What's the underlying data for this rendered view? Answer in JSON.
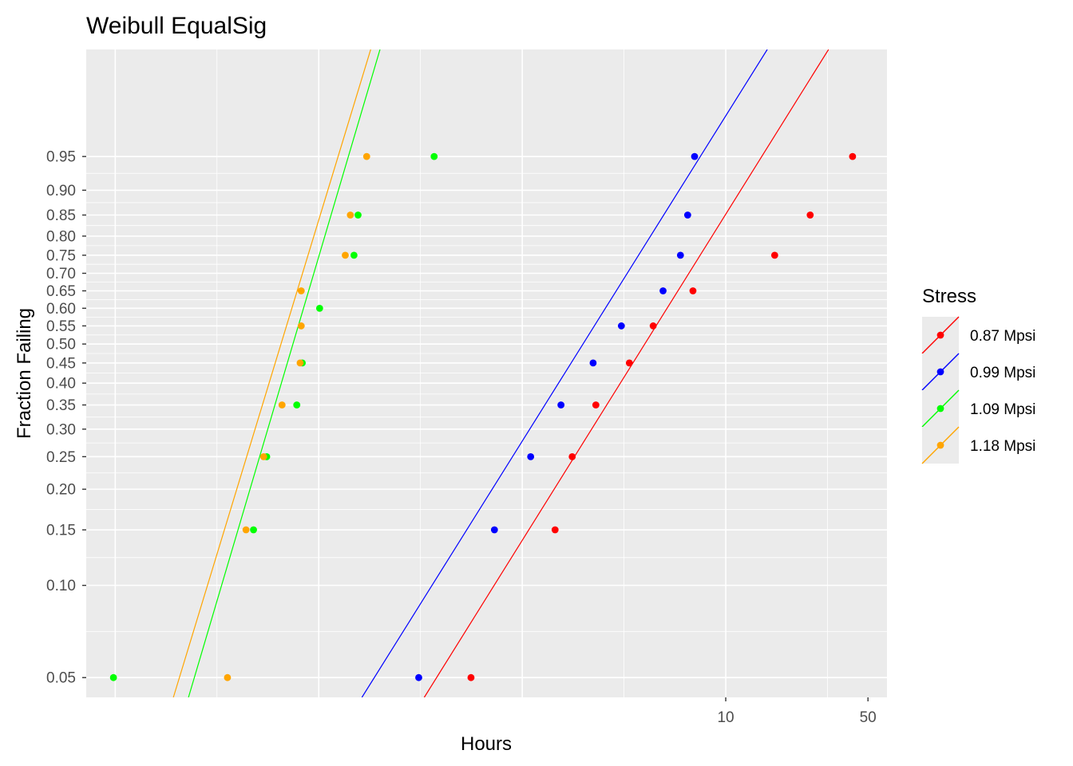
{
  "chart_data": {
    "type": "scatter",
    "title": "Weibull EqualSig",
    "xlabel": "Hours",
    "ylabel": "Fraction Failing",
    "x_scale": "log10",
    "y_scale": "weibull",
    "xlim": [
      0.0072,
      62
    ],
    "ylim": [
      0.043,
      0.999
    ],
    "x_major_ticks": [
      0.01,
      0.1,
      1,
      10,
      100
    ],
    "x_minor_ticks": [
      0.0316,
      0.316,
      3.16,
      31.6
    ],
    "x_tick_labels": [
      {
        "value": 10,
        "label": "10"
      },
      {
        "value": 50,
        "label": "50"
      }
    ],
    "y_major_ticks": [
      0.05,
      0.1,
      0.15,
      0.2,
      0.25,
      0.3,
      0.35,
      0.4,
      0.45,
      0.5,
      0.55,
      0.6,
      0.65,
      0.7,
      0.75,
      0.8,
      0.85,
      0.9,
      0.95
    ],
    "y_tick_labels": [
      "0.05",
      "0.10",
      "0.15",
      "0.20",
      "0.25",
      "0.30",
      "0.35",
      "0.40",
      "0.45",
      "0.50",
      "0.55",
      "0.60",
      "0.65",
      "0.70",
      "0.75",
      "0.80",
      "0.85",
      "0.90",
      "0.95"
    ],
    "grid": true,
    "legend": {
      "title": "Stress",
      "position": "right"
    },
    "series": [
      {
        "name": "0.87 Mpsi",
        "color": "#ff0000",
        "points": [
          {
            "x": 0.56,
            "y": 0.05
          },
          {
            "x": 1.45,
            "y": 0.15
          },
          {
            "x": 1.76,
            "y": 0.25
          },
          {
            "x": 2.3,
            "y": 0.35
          },
          {
            "x": 3.36,
            "y": 0.45
          },
          {
            "x": 4.4,
            "y": 0.55
          },
          {
            "x": 6.9,
            "y": 0.65
          },
          {
            "x": 17.4,
            "y": 0.75
          },
          {
            "x": 26,
            "y": 0.85
          },
          {
            "x": 42,
            "y": 0.95
          }
        ],
        "fit_line": [
          {
            "x": 0.33,
            "y": 0.043
          },
          {
            "x": 32,
            "y": 0.999
          }
        ]
      },
      {
        "name": "0.99 Mpsi",
        "color": "#0000ff",
        "points": [
          {
            "x": 0.31,
            "y": 0.05
          },
          {
            "x": 0.73,
            "y": 0.15
          },
          {
            "x": 1.1,
            "y": 0.25
          },
          {
            "x": 1.55,
            "y": 0.35
          },
          {
            "x": 2.23,
            "y": 0.45
          },
          {
            "x": 3.07,
            "y": 0.55
          },
          {
            "x": 4.92,
            "y": 0.65
          },
          {
            "x": 5.99,
            "y": 0.75
          },
          {
            "x": 6.5,
            "y": 0.85
          },
          {
            "x": 7.03,
            "y": 0.95
          }
        ],
        "fit_line": [
          {
            "x": 0.163,
            "y": 0.043
          },
          {
            "x": 16,
            "y": 0.999
          }
        ]
      },
      {
        "name": "1.09 Mpsi",
        "color": "#00ff00",
        "points": [
          {
            "x": 0.0098,
            "y": 0.05
          },
          {
            "x": 0.0478,
            "y": 0.15
          },
          {
            "x": 0.0555,
            "y": 0.25
          },
          {
            "x": 0.078,
            "y": 0.35
          },
          {
            "x": 0.083,
            "y": 0.45
          },
          {
            "x": 0.101,
            "y": 0.6
          },
          {
            "x": 0.149,
            "y": 0.75
          },
          {
            "x": 0.156,
            "y": 0.85
          },
          {
            "x": 0.369,
            "y": 0.95
          }
        ],
        "fit_line": [
          {
            "x": 0.0229,
            "y": 0.043
          },
          {
            "x": 0.2,
            "y": 0.999
          }
        ]
      },
      {
        "name": "1.18 Mpsi",
        "color": "#ffa500",
        "points": [
          {
            "x": 0.0356,
            "y": 0.05
          },
          {
            "x": 0.0439,
            "y": 0.15
          },
          {
            "x": 0.0536,
            "y": 0.25
          },
          {
            "x": 0.066,
            "y": 0.35
          },
          {
            "x": 0.081,
            "y": 0.45
          },
          {
            "x": 0.082,
            "y": 0.55
          },
          {
            "x": 0.082,
            "y": 0.65
          },
          {
            "x": 0.135,
            "y": 0.75
          },
          {
            "x": 0.143,
            "y": 0.85
          },
          {
            "x": 0.172,
            "y": 0.95
          }
        ],
        "fit_line": [
          {
            "x": 0.0193,
            "y": 0.043
          },
          {
            "x": 0.18,
            "y": 0.999
          }
        ]
      }
    ]
  }
}
